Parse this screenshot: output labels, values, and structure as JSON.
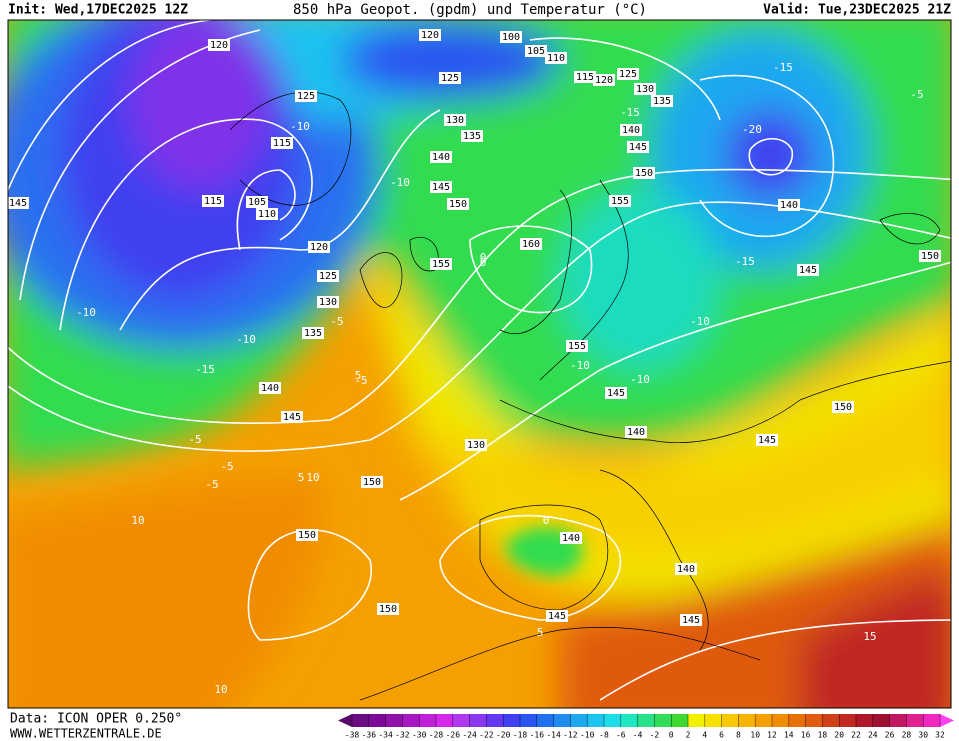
{
  "header": {
    "init": "Init: Wed,17DEC2025 12Z",
    "title": "850 hPa Geopot. (gpdm) und Temperatur (°C)",
    "valid": "Valid: Tue,23DEC2025 21Z"
  },
  "footer": {
    "data": "Data: ICON OPER 0.250°",
    "site": "WWW.WETTERZENTRALE.DE"
  },
  "colorbar": {
    "ticks": [
      -38,
      -36,
      -34,
      -32,
      -30,
      -28,
      -26,
      -24,
      -22,
      -20,
      -18,
      -16,
      -14,
      -12,
      -10,
      -8,
      -6,
      -4,
      -2,
      0,
      2,
      4,
      6,
      8,
      10,
      12,
      14,
      16,
      18,
      20,
      22,
      24,
      26,
      28,
      30,
      32
    ],
    "colors": [
      "#5a0a6a",
      "#6a0d83",
      "#7c0a96",
      "#9010aa",
      "#a818c0",
      "#c020d8",
      "#d428ec",
      "#b038f0",
      "#8a38f0",
      "#6438f0",
      "#4040f0",
      "#2a55f0",
      "#2070f0",
      "#1e8cf0",
      "#1ea8f0",
      "#1ec4f0",
      "#1edce8",
      "#1ee6c0",
      "#28e08a",
      "#30dc58",
      "#40d830",
      "#f0f000",
      "#f8e000",
      "#f8c800",
      "#f8b400",
      "#f5a000",
      "#f08c00",
      "#e87000",
      "#e05a10",
      "#d04018",
      "#c02820",
      "#b01828",
      "#a01030",
      "#c01860",
      "#e02090",
      "#f028c0",
      "#ff40f0"
    ]
  },
  "map": {
    "geopotential_labels": [
      120,
      120,
      100,
      105,
      110,
      115,
      120,
      125,
      130,
      135,
      125,
      125,
      130,
      135,
      140,
      145,
      150,
      115,
      105,
      110,
      115,
      145,
      120,
      125,
      130,
      135,
      140,
      145,
      160,
      155,
      155,
      150,
      145,
      140,
      140,
      145,
      150,
      155,
      145,
      140,
      150,
      145,
      130,
      150,
      150,
      140,
      140,
      150,
      145,
      145
    ],
    "temperature_labels": [
      -20,
      -15,
      -15,
      -10,
      -10,
      -10,
      -15,
      -5,
      -5,
      -5,
      -10,
      -5,
      0,
      -10,
      -10,
      -5,
      -5,
      0,
      5,
      5,
      10,
      10,
      10,
      5,
      0,
      15,
      -15,
      -10
    ]
  }
}
